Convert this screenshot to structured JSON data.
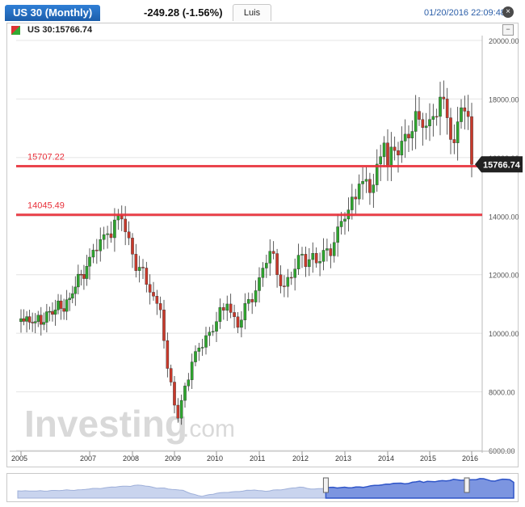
{
  "header": {
    "title": "US 30 (Monthly)",
    "change": "-249.28 (-1.56%)",
    "user": "Luis",
    "datetime": "01/20/2016 22:09:48",
    "symbol_label": "US 30:15766.74"
  },
  "watermark": {
    "brand": "Investing",
    "suffix": ".com"
  },
  "chart_data": {
    "type": "candlestick",
    "title": "US 30 (Monthly)",
    "ylim": [
      6000,
      20000
    ],
    "y_ticks": [
      "6000.00",
      "8000.00",
      "10000.00",
      "12000.00",
      "14000.00",
      "16000.00",
      "18000.00",
      "20000.00"
    ],
    "x_ticks": [
      "2005",
      "2007",
      "2008",
      "2009",
      "2010",
      "2011",
      "2012",
      "2013",
      "2014",
      "2015",
      "2016"
    ],
    "current_price": "15766.74",
    "levels": [
      {
        "label": "15707.22",
        "value": 15707.22
      },
      {
        "label": "14045.49",
        "value": 14045.49
      }
    ],
    "colors": {
      "up": "#2ea52e",
      "down": "#c8392b",
      "level": "#e8303a",
      "price_tag": "#222222",
      "navigator": "#2f55c8"
    },
    "grid": true,
    "anchors": [
      [
        "2005-01",
        10500
      ],
      [
        "2005-06",
        10400
      ],
      [
        "2006-01",
        10800
      ],
      [
        "2006-06",
        11200
      ],
      [
        "2007-01",
        12600
      ],
      [
        "2007-06",
        13400
      ],
      [
        "2007-10",
        13900
      ],
      [
        "2008-01",
        12700
      ],
      [
        "2008-06",
        11400
      ],
      [
        "2008-09",
        10800
      ],
      [
        "2008-11",
        8800
      ],
      [
        "2009-02",
        7100
      ],
      [
        "2009-04",
        8200
      ],
      [
        "2009-08",
        9500
      ],
      [
        "2010-01",
        10400
      ],
      [
        "2010-04",
        11000
      ],
      [
        "2010-07",
        10200
      ],
      [
        "2011-01",
        11900
      ],
      [
        "2011-04",
        12800
      ],
      [
        "2011-08",
        11600
      ],
      [
        "2011-10",
        11900
      ],
      [
        "2012-01",
        12700
      ],
      [
        "2012-05",
        12400
      ],
      [
        "2012-10",
        13100
      ],
      [
        "2013-01",
        13900
      ],
      [
        "2013-05",
        15100
      ],
      [
        "2013-08",
        14800
      ],
      [
        "2013-12",
        16500
      ],
      [
        "2014-01",
        15700
      ],
      [
        "2014-06",
        16800
      ],
      [
        "2014-10",
        17300
      ],
      [
        "2015-01",
        17300
      ],
      [
        "2015-05",
        18000
      ],
      [
        "2015-08",
        16500
      ],
      [
        "2015-10",
        17700
      ],
      [
        "2015-12",
        17400
      ],
      [
        "2016-01",
        15766.74
      ]
    ]
  }
}
